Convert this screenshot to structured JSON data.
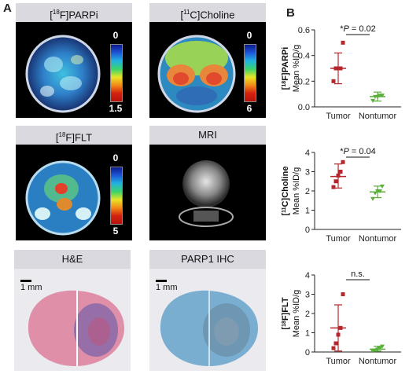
{
  "panel_labels": {
    "a": "A",
    "b": "B"
  },
  "images": {
    "parpi": {
      "prefix": "[",
      "sup": "18",
      "suffix": "F]PARPi",
      "cbar_top": "0",
      "cbar_bottom": "1.5"
    },
    "choline": {
      "prefix": "[",
      "sup": "11",
      "suffix": "C]Choline",
      "cbar_top": "0",
      "cbar_bottom": "6"
    },
    "flt": {
      "prefix": "[",
      "sup": "18",
      "suffix": "F]FLT",
      "cbar_top": "0",
      "cbar_bottom": "5"
    },
    "mri": {
      "title": "MRI"
    },
    "he": {
      "title": "H&E",
      "scale": "1 mm"
    },
    "ihc": {
      "title": "PARP1 IHC",
      "scale": "1 mm"
    }
  },
  "colors": {
    "tumor": "#b5272d",
    "nontumor": "#5aae3a",
    "sig_line": "#111111"
  },
  "chart_data": [
    {
      "type": "scatter",
      "ylabel_sup": "18",
      "ylabel_main": "F]PARPi",
      "ylabel_sub": "Mean %ID/g",
      "categories": [
        "Tumor",
        "Nontumor"
      ],
      "ylim": [
        0,
        0.6
      ],
      "yticks": [
        "0.0",
        "0.2",
        "0.4",
        "0.6"
      ],
      "series": [
        {
          "category": "Tumor",
          "points": [
            0.2,
            0.3,
            0.3,
            0.3,
            0.5
          ],
          "mean": 0.3,
          "sd_low": 0.18,
          "sd_high": 0.42
        },
        {
          "category": "Nontumor",
          "points": [
            0.05,
            0.08,
            0.08,
            0.09,
            0.09
          ],
          "mean": 0.08,
          "sd_low": 0.045,
          "sd_high": 0.115
        }
      ],
      "significance": {
        "prefix": "*",
        "p": "P",
        "rest": " = 0.02"
      }
    },
    {
      "type": "scatter",
      "ylabel_sup": "11",
      "ylabel_main": "C]Choline",
      "ylabel_sub": "Mean %ID/g",
      "categories": [
        "Tumor",
        "Nontumor"
      ],
      "ylim": [
        0,
        4
      ],
      "yticks": [
        "0",
        "1",
        "2",
        "3",
        "4"
      ],
      "series": [
        {
          "category": "Tumor",
          "points": [
            2.2,
            2.5,
            2.8,
            3.0,
            3.5
          ],
          "mean": 2.75,
          "sd_low": 2.15,
          "sd_high": 3.4
        },
        {
          "category": "Nontumor",
          "points": [
            1.6,
            1.9,
            2.0,
            2.0,
            2.25
          ],
          "mean": 1.95,
          "sd_low": 1.65,
          "sd_high": 2.25
        }
      ],
      "significance": {
        "prefix": "*",
        "p": "P",
        "rest": " = 0.04"
      }
    },
    {
      "type": "scatter",
      "ylabel_sup": "18",
      "ylabel_main": "F]FLT",
      "ylabel_sub": "Mean %ID/g",
      "categories": [
        "Tumor",
        "Nontumor"
      ],
      "ylim": [
        0,
        4
      ],
      "yticks": [
        "0",
        "1",
        "2",
        "3",
        "4"
      ],
      "series": [
        {
          "category": "Tumor",
          "points": [
            0.2,
            0.45,
            0.9,
            1.25,
            3.0
          ],
          "mean": 1.25,
          "sd_low": 0.05,
          "sd_high": 2.45
        },
        {
          "category": "Nontumor",
          "points": [
            0.05,
            0.1,
            0.15,
            0.2,
            0.3
          ],
          "mean": 0.15,
          "sd_low": 0.05,
          "sd_high": 0.3
        }
      ],
      "significance": {
        "text": "n.s."
      }
    }
  ]
}
